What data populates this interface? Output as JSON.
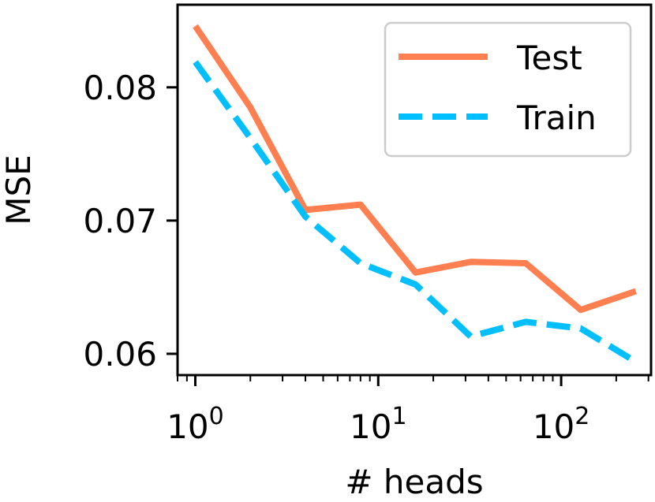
{
  "chart_data": {
    "type": "line",
    "xscale": "log",
    "xlabel": "# heads",
    "ylabel": "MSE",
    "xlim": [
      0.8,
      310
    ],
    "ylim": [
      0.0584,
      0.0862
    ],
    "x": [
      1,
      2,
      4,
      8,
      16,
      32,
      64,
      128,
      256
    ],
    "x_ticks": [
      {
        "value": 1,
        "base": "10",
        "exp": "0"
      },
      {
        "value": 10,
        "base": "10",
        "exp": "1"
      },
      {
        "value": 100,
        "base": "10",
        "exp": "2"
      }
    ],
    "y_ticks": [
      {
        "value": 0.06,
        "label": "0.06"
      },
      {
        "value": 0.07,
        "label": "0.07"
      },
      {
        "value": 0.08,
        "label": "0.08"
      }
    ],
    "series": [
      {
        "name": "Test",
        "color": "#ff7f50",
        "style": "solid",
        "values": [
          0.0846,
          0.0785,
          0.0708,
          0.0712,
          0.0661,
          0.0669,
          0.0668,
          0.0633,
          0.0647
        ]
      },
      {
        "name": "Train",
        "color": "#00bfff",
        "style": "dashed",
        "values": [
          0.0819,
          0.0762,
          0.0703,
          0.0668,
          0.0652,
          0.0613,
          0.0624,
          0.0619,
          0.0594
        ]
      }
    ],
    "legend": "top-right",
    "grid": false
  }
}
